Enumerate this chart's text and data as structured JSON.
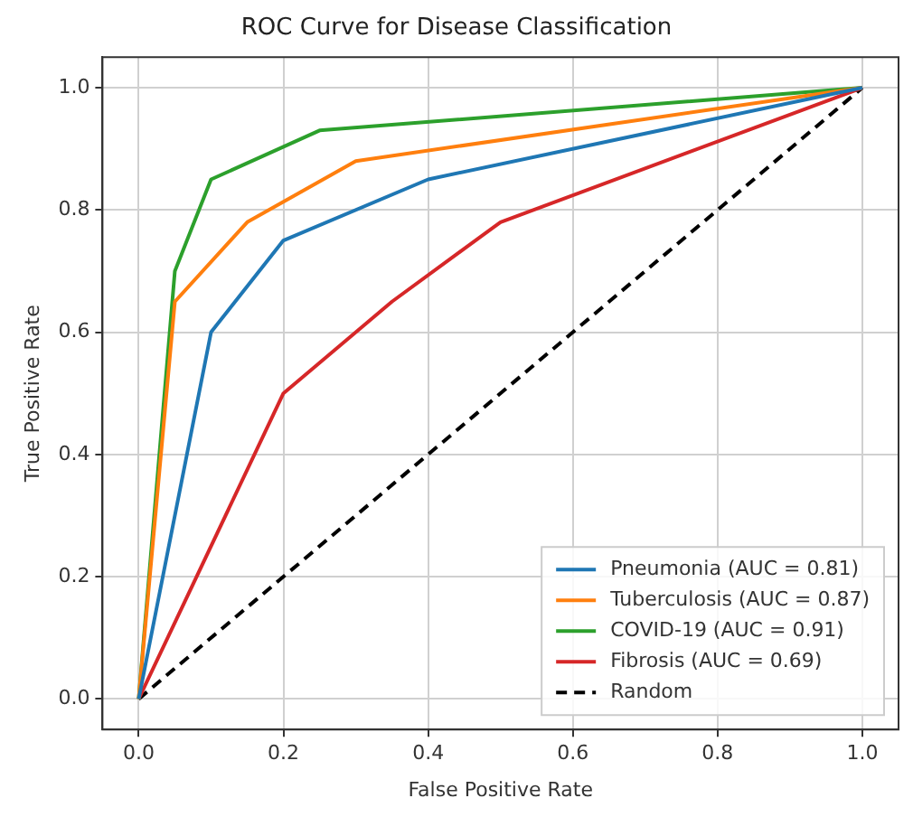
{
  "chart_data": {
    "type": "line",
    "title": "ROC Curve for Disease Classification",
    "xlabel": "False Positive Rate",
    "ylabel": "True Positive Rate",
    "xlim": [
      -0.05,
      1.05
    ],
    "ylim": [
      -0.05,
      1.05
    ],
    "xticks": [
      {
        "value": 0,
        "label": "0.0"
      },
      {
        "value": 0.2,
        "label": "0.2"
      },
      {
        "value": 0.4,
        "label": "0.4"
      },
      {
        "value": 0.6,
        "label": "0.6"
      },
      {
        "value": 0.8,
        "label": "0.8"
      },
      {
        "value": 1,
        "label": "1.0"
      }
    ],
    "yticks": [
      {
        "value": 0,
        "label": "0.0"
      },
      {
        "value": 0.2,
        "label": "0.2"
      },
      {
        "value": 0.4,
        "label": "0.4"
      },
      {
        "value": 0.6,
        "label": "0.6"
      },
      {
        "value": 0.8,
        "label": "0.8"
      },
      {
        "value": 1,
        "label": "1.0"
      }
    ],
    "grid": true,
    "legend": "bottom right",
    "marker": "none",
    "series": [
      {
        "name": "Pneumonia (AUC = 0.81)",
        "color": "#1f77b4",
        "x": [
          0,
          0.1,
          0.2,
          0.4,
          1
        ],
        "values": [
          0,
          0.6,
          0.75,
          0.85,
          1
        ]
      },
      {
        "name": "Tuberculosis (AUC = 0.87)",
        "color": "#ff7f0e",
        "x": [
          0,
          0.05,
          0.15,
          0.3,
          1
        ],
        "values": [
          0,
          0.65,
          0.78,
          0.88,
          1
        ]
      },
      {
        "name": "COVID-19 (AUC = 0.91)",
        "color": "#2ca02c",
        "x": [
          0,
          0.05,
          0.1,
          0.25,
          1
        ],
        "values": [
          0,
          0.7,
          0.85,
          0.93,
          1
        ]
      },
      {
        "name": "Fibrosis (AUC = 0.69)",
        "color": "#d62728",
        "x": [
          0,
          0.2,
          0.35,
          0.5,
          1
        ],
        "values": [
          0,
          0.5,
          0.65,
          0.78,
          1
        ]
      },
      {
        "name": "Random",
        "color": "#000000",
        "line_style": "dashed",
        "x": [
          0,
          1
        ],
        "values": [
          0,
          1
        ]
      }
    ]
  }
}
